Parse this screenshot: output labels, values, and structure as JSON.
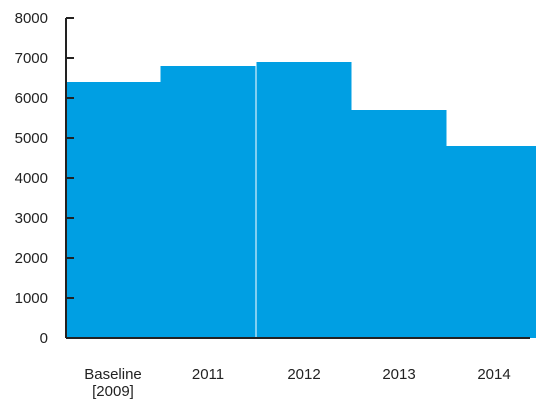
{
  "chart_data": {
    "type": "bar",
    "categories": [
      [
        "Baseline",
        "[2009]"
      ],
      [
        "2011"
      ],
      [
        "2012"
      ],
      [
        "2013"
      ],
      [
        "2014"
      ]
    ],
    "values": [
      6400,
      6800,
      6900,
      5700,
      4800
    ],
    "y_ticks": [
      "0",
      "1000",
      "2000",
      "3000",
      "4000",
      "5000",
      "6000",
      "7000",
      "8000"
    ],
    "ylim": [
      0,
      8000
    ],
    "title": "",
    "xlabel": "",
    "ylabel": "",
    "grid": false,
    "bar_color": "#009fe3",
    "axis_color": "#222222"
  }
}
